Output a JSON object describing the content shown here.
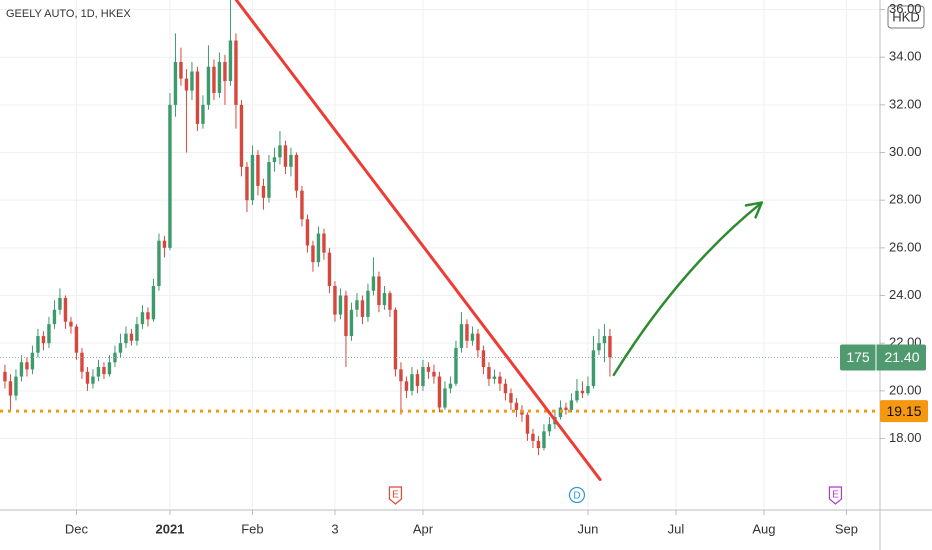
{
  "chart_data": {
    "type": "candlestick",
    "title": "GEELY AUTO, 1D, HKEX",
    "currency": "HKD",
    "up_color": "#3d9a6c",
    "down_color": "#d6483d",
    "open": [
      20.8,
      20.4,
      19.8,
      20.6,
      21.2,
      20.9,
      21.6,
      22.3,
      22.0,
      22.8,
      23.4,
      23.9,
      22.9,
      22.7,
      21.6,
      20.8,
      20.3,
      20.6,
      21.0,
      20.7,
      21.2,
      21.6,
      22.0,
      22.4,
      22.1,
      22.8,
      23.3,
      23.0,
      24.4,
      26.3,
      26.0,
      32.0,
      33.8,
      33.1,
      32.6,
      33.4,
      31.2,
      32.0,
      33.6,
      32.5,
      33.8,
      33.0,
      34.7,
      32.0,
      29.4,
      28.0,
      29.9,
      28.6,
      28.1,
      29.6,
      29.8,
      30.3,
      29.4,
      29.9,
      28.4,
      27.2,
      26.1,
      25.4,
      26.6,
      25.8,
      24.4,
      23.2,
      24.0,
      22.3,
      23.4,
      23.8,
      23.1,
      24.2,
      24.8,
      23.6,
      24.1,
      23.4,
      20.9,
      20.4,
      20.0,
      20.7,
      20.2,
      21.0,
      20.8,
      20.6,
      19.3,
      20.1,
      20.3,
      21.8,
      22.8,
      22.1,
      22.4,
      21.7,
      21.0,
      20.5,
      20.6,
      20.3,
      19.9,
      19.5,
      19.2,
      19.0,
      18.2,
      17.9,
      17.6,
      18.3,
      18.6,
      18.9,
      19.3,
      19.2,
      19.6,
      20.0,
      19.9,
      20.2,
      21.7,
      22.0,
      22.3
    ],
    "high": [
      21.1,
      20.7,
      20.9,
      21.5,
      21.4,
      21.9,
      22.6,
      22.5,
      23.1,
      23.8,
      24.3,
      24.0,
      23.1,
      22.8,
      21.8,
      21.0,
      20.9,
      21.3,
      21.2,
      21.5,
      21.9,
      22.4,
      22.7,
      22.6,
      23.1,
      23.6,
      23.5,
      24.7,
      26.6,
      26.5,
      32.5,
      35.0,
      34.4,
      33.5,
      33.8,
      33.6,
      32.4,
      34.5,
      33.9,
      34.2,
      34.1,
      36.4,
      35.0,
      32.2,
      29.6,
      30.3,
      30.1,
      28.9,
      29.9,
      30.2,
      30.9,
      30.5,
      30.2,
      30.0,
      28.6,
      27.4,
      26.3,
      26.9,
      26.8,
      26.0,
      24.6,
      24.3,
      24.2,
      23.7,
      24.1,
      24.0,
      24.5,
      25.6,
      25.0,
      24.4,
      24.2,
      23.5,
      21.2,
      20.6,
      21.0,
      20.9,
      21.3,
      21.2,
      21.1,
      20.8,
      20.4,
      20.6,
      22.1,
      23.3,
      23.0,
      22.7,
      22.6,
      21.9,
      21.2,
      20.9,
      20.8,
      20.5,
      20.1,
      19.7,
      19.4,
      19.1,
      18.4,
      18.1,
      18.6,
      18.9,
      19.2,
      19.6,
      19.5,
      19.9,
      20.5,
      20.4,
      20.6,
      22.3,
      22.6,
      22.8,
      22.6
    ],
    "low": [
      20.1,
      19.1,
      19.6,
      20.4,
      20.6,
      20.7,
      21.4,
      21.7,
      21.8,
      22.6,
      23.2,
      22.6,
      22.4,
      21.3,
      20.5,
      20.0,
      20.1,
      20.4,
      20.5,
      20.6,
      21.0,
      21.4,
      21.8,
      21.9,
      21.9,
      22.6,
      22.7,
      22.9,
      24.2,
      25.6,
      25.9,
      31.5,
      32.8,
      30.0,
      32.2,
      30.9,
      31.0,
      31.8,
      32.2,
      32.3,
      32.0,
      32.8,
      31.0,
      29.0,
      27.5,
      27.8,
      28.2,
      27.6,
      27.9,
      29.2,
      29.5,
      29.1,
      29.0,
      28.1,
      26.9,
      25.8,
      25.0,
      25.2,
      25.5,
      24.1,
      22.9,
      23.0,
      21.0,
      22.1,
      23.1,
      22.8,
      22.9,
      24.0,
      23.3,
      23.4,
      23.1,
      20.6,
      19.0,
      19.7,
      19.8,
      19.9,
      20.0,
      20.5,
      20.3,
      19.1,
      19.2,
      19.9,
      20.2,
      21.6,
      21.8,
      21.9,
      21.4,
      20.7,
      20.2,
      20.3,
      20.0,
      19.6,
      19.2,
      18.9,
      18.7,
      17.9,
      17.6,
      17.3,
      17.5,
      18.1,
      18.4,
      18.8,
      19.0,
      19.1,
      19.5,
      19.7,
      19.8,
      20.1,
      21.5,
      21.2,
      20.6
    ],
    "close": [
      20.4,
      19.8,
      20.6,
      21.2,
      20.9,
      21.6,
      22.3,
      22.0,
      22.8,
      23.4,
      23.9,
      22.9,
      22.7,
      21.6,
      20.8,
      20.3,
      20.6,
      21.0,
      20.7,
      21.2,
      21.6,
      22.0,
      22.4,
      22.1,
      22.8,
      23.3,
      23.0,
      24.4,
      26.3,
      26.0,
      32.0,
      33.8,
      33.1,
      32.6,
      33.4,
      31.2,
      32.0,
      33.6,
      32.5,
      33.8,
      33.0,
      34.7,
      32.0,
      29.4,
      28.0,
      29.9,
      28.6,
      28.1,
      29.6,
      29.8,
      30.3,
      29.4,
      29.9,
      28.4,
      27.2,
      26.1,
      25.4,
      26.6,
      25.8,
      24.4,
      23.2,
      24.0,
      22.3,
      23.4,
      23.8,
      23.1,
      24.2,
      24.8,
      23.6,
      24.1,
      23.4,
      20.9,
      20.4,
      20.0,
      20.7,
      20.2,
      21.0,
      20.8,
      20.6,
      19.3,
      20.1,
      20.3,
      21.8,
      22.8,
      22.1,
      22.4,
      21.7,
      21.0,
      20.5,
      20.6,
      20.3,
      19.9,
      19.5,
      19.2,
      19.0,
      18.2,
      17.9,
      17.6,
      18.3,
      18.6,
      18.9,
      19.3,
      19.2,
      19.6,
      20.0,
      19.9,
      20.2,
      21.7,
      22.0,
      22.3,
      21.4
    ],
    "xlim": [
      -0.9,
      159.1
    ],
    "xticks": [
      {
        "value": 13,
        "label": "Dec"
      },
      {
        "value": 30,
        "label": "2021",
        "bold": true
      },
      {
        "value": 45,
        "label": "Feb"
      },
      {
        "value": 60,
        "label": "3"
      },
      {
        "value": 76,
        "label": "Apr"
      },
      {
        "value": 106,
        "label": "Jun"
      },
      {
        "value": 122,
        "label": "Jul"
      },
      {
        "value": 138,
        "label": "Aug"
      },
      {
        "value": 153,
        "label": "Sep"
      }
    ],
    "ylim": [
      15.0,
      36.4
    ],
    "yticks": [
      {
        "value": 18,
        "label": "18.00"
      },
      {
        "value": 20,
        "label": "20.00"
      },
      {
        "value": 22,
        "label": "22.00"
      },
      {
        "value": 24,
        "label": "24.00"
      },
      {
        "value": 26,
        "label": "26.00"
      },
      {
        "value": 28,
        "label": "28.00"
      },
      {
        "value": 30,
        "label": "30.00"
      },
      {
        "value": 32,
        "label": "32.00"
      },
      {
        "value": 34,
        "label": "34.00"
      },
      {
        "value": 36,
        "label": "36.00"
      }
    ],
    "grid": true,
    "last_price": {
      "value": 21.4,
      "label": "21.40",
      "badge": "175",
      "color": "#4f9a6f"
    },
    "hline": {
      "value": 19.15,
      "label": "19.15",
      "color": "#f5980f"
    },
    "trendline": {
      "x": [
        42,
        108.2
      ],
      "y": [
        36.42,
        16.28
      ],
      "color": "#ee3b33"
    },
    "arrow": {
      "x": [
        110.7,
        137.6
      ],
      "y": [
        20.67,
        27.9
      ],
      "color": "#2e8b30"
    },
    "events": [
      {
        "x": 71,
        "label": "E",
        "color": "#e0453a"
      },
      {
        "x": 104,
        "label": "D",
        "color": "#2a9ad6"
      },
      {
        "x": 151,
        "label": "E",
        "color": "#b03bc8"
      }
    ]
  }
}
